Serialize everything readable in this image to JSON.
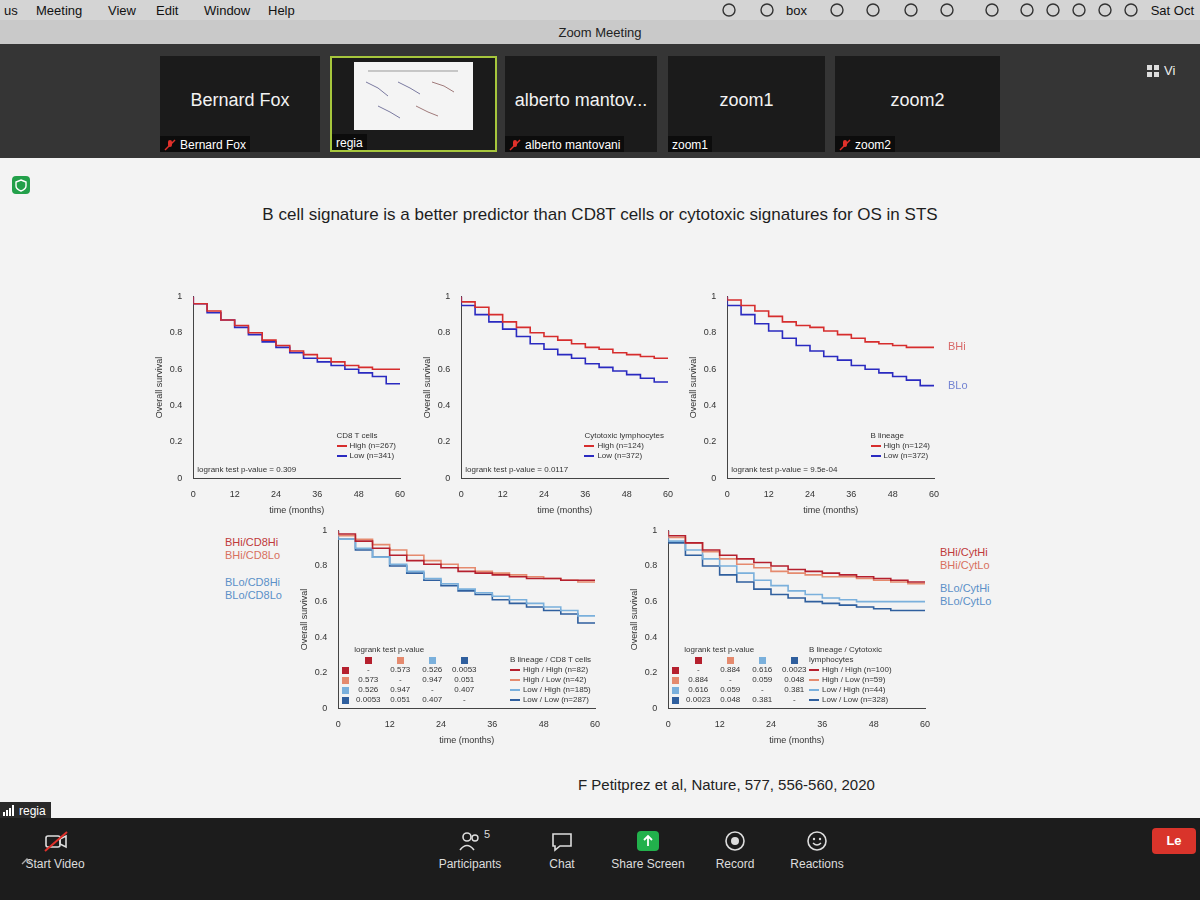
{
  "app_window": {
    "menu_bar": {
      "items": [
        "us",
        "Meeting",
        "View",
        "Edit",
        "Window",
        "Help"
      ],
      "status_items": [
        "box",
        "Sat Oct"
      ]
    },
    "window_title": "Zoom Meeting",
    "view_button": "Vi",
    "tiles": [
      {
        "name": "Bernard Fox",
        "label": "Bernard Fox",
        "muted": true
      },
      {
        "label": "regia",
        "muted": false
      },
      {
        "name": "alberto mantov...",
        "label": "alberto mantovani",
        "muted": true
      },
      {
        "name": "zoom1",
        "label": "zoom1",
        "muted": false
      },
      {
        "name": "zoom2",
        "label": "zoom2",
        "muted": true
      }
    ],
    "self_label": "regia",
    "toolbar": [
      {
        "label": "Start Video"
      },
      {
        "label": "Participants",
        "count": 5
      },
      {
        "label": "Chat"
      },
      {
        "label": "Share Screen"
      },
      {
        "label": "Record"
      },
      {
        "label": "Reactions"
      }
    ],
    "leave_button": "Le"
  },
  "slide": {
    "title": "B cell signature is a better predictor than CD8T cells or cytotoxic signatures for OS in STS",
    "citation": "F Petitprez et al, Nature, 577, 556-560, 2020"
  },
  "chart_data": [
    {
      "type": "line",
      "line_style": "steps",
      "x": [
        0,
        4,
        8,
        12,
        16,
        20,
        24,
        28,
        32,
        36,
        40,
        44,
        48,
        52,
        56,
        60
      ],
      "xlim": [
        0,
        60
      ],
      "xticks": [
        0,
        12,
        24,
        36,
        48,
        60
      ],
      "ylim": [
        0,
        1
      ],
      "yticks": [
        0,
        0.2,
        0.4,
        0.6,
        0.8,
        1
      ],
      "x_label": "time (months)",
      "y_label": "Overall survival",
      "legend": "lower right",
      "legend_title": "CD8 T cells",
      "pvalue": "logrank test p-value = 0.309",
      "series": [
        {
          "name": "High (n=267)",
          "color": "#d62d2d",
          "values": [
            1,
            0.96,
            0.92,
            0.87,
            0.84,
            0.8,
            0.76,
            0.73,
            0.7,
            0.68,
            0.66,
            0.64,
            0.62,
            0.61,
            0.6,
            0.6
          ]
        },
        {
          "name": "Low (n=341)",
          "color": "#2a2ac0",
          "values": [
            1,
            0.96,
            0.91,
            0.87,
            0.83,
            0.79,
            0.75,
            0.72,
            0.69,
            0.66,
            0.64,
            0.62,
            0.6,
            0.58,
            0.56,
            0.52
          ]
        }
      ]
    },
    {
      "type": "line",
      "line_style": "steps",
      "x": [
        0,
        4,
        8,
        12,
        16,
        20,
        24,
        28,
        32,
        36,
        40,
        44,
        48,
        52,
        56,
        60
      ],
      "xlim": [
        0,
        60
      ],
      "xticks": [
        0,
        12,
        24,
        36,
        48,
        60
      ],
      "ylim": [
        0,
        1
      ],
      "yticks": [
        0,
        0.2,
        0.4,
        0.6,
        0.8,
        1
      ],
      "x_label": "time (months)",
      "y_label": "Overall survival",
      "legend": "lower right",
      "legend_title": "Cytotoxic lymphocytes",
      "pvalue": "logrank test p-value = 0.0117",
      "series": [
        {
          "name": "High (n=124)",
          "color": "#d62d2d",
          "values": [
            1,
            0.97,
            0.94,
            0.9,
            0.86,
            0.83,
            0.8,
            0.78,
            0.76,
            0.74,
            0.72,
            0.71,
            0.69,
            0.68,
            0.67,
            0.66
          ]
        },
        {
          "name": "Low (n=372)",
          "color": "#2a2ac0",
          "values": [
            1,
            0.95,
            0.9,
            0.86,
            0.82,
            0.78,
            0.74,
            0.71,
            0.68,
            0.66,
            0.63,
            0.61,
            0.59,
            0.57,
            0.55,
            0.53
          ]
        }
      ]
    },
    {
      "type": "line",
      "line_style": "steps",
      "x": [
        0,
        4,
        8,
        12,
        16,
        20,
        24,
        28,
        32,
        36,
        40,
        44,
        48,
        52,
        56,
        60
      ],
      "xlim": [
        0,
        60
      ],
      "xticks": [
        0,
        12,
        24,
        36,
        48,
        60
      ],
      "ylim": [
        0,
        1
      ],
      "yticks": [
        0,
        0.2,
        0.4,
        0.6,
        0.8,
        1
      ],
      "x_label": "time (months)",
      "y_label": "Overall survival",
      "legend": "lower right",
      "legend_title": "B lineage",
      "pvalue": "logrank test p-value = 9.5e-04",
      "annotations": [
        {
          "text": "BHi",
          "color": "#d86a6a"
        },
        {
          "text": "BLo",
          "color": "#7383d2"
        }
      ],
      "series": [
        {
          "name": "High (n=124)",
          "color": "#d62d2d",
          "values": [
            1,
            0.98,
            0.95,
            0.92,
            0.89,
            0.86,
            0.84,
            0.83,
            0.81,
            0.79,
            0.77,
            0.75,
            0.74,
            0.73,
            0.72,
            0.72
          ]
        },
        {
          "name": "Low (n=372)",
          "color": "#2a2ac0",
          "values": [
            1,
            0.95,
            0.9,
            0.85,
            0.81,
            0.77,
            0.73,
            0.7,
            0.67,
            0.65,
            0.62,
            0.6,
            0.58,
            0.56,
            0.54,
            0.51
          ]
        }
      ]
    },
    {
      "type": "line",
      "line_style": "steps",
      "x": [
        0,
        4,
        8,
        12,
        16,
        20,
        24,
        28,
        32,
        36,
        40,
        44,
        48,
        52,
        56,
        60
      ],
      "xlim": [
        0,
        60
      ],
      "xticks": [
        0,
        12,
        24,
        36,
        48,
        60
      ],
      "ylim": [
        0,
        1
      ],
      "yticks": [
        0,
        0.2,
        0.4,
        0.6,
        0.8,
        1
      ],
      "x_label": "time (months)",
      "y_label": "Overall survival",
      "legend": "lower right",
      "legend_title": "B lineage / CD8 T cells",
      "pvalue_table": {
        "title": "logrank test p-value",
        "rows": [
          [
            "-",
            0.573,
            0.526,
            0.0053
          ],
          [
            0.573,
            "-",
            0.947,
            0.051
          ],
          [
            0.526,
            0.947,
            "-",
            0.407
          ],
          [
            0.0053,
            0.051,
            0.407,
            "-"
          ]
        ]
      },
      "annotations": [
        {
          "text": "BHi/CD8Hi",
          "color": "#c03a3a"
        },
        {
          "text": "BHi/CD8Lo",
          "color": "#d8705e"
        },
        {
          "text": "BLo/CD8Hi",
          "color": "#5b90c8"
        },
        {
          "text": "BLo/CD8Lo",
          "color": "#5b90c8"
        }
      ],
      "series": [
        {
          "name": "High / High (n=82)",
          "color": "#b5202e",
          "values": [
            1,
            0.98,
            0.94,
            0.9,
            0.86,
            0.83,
            0.81,
            0.79,
            0.77,
            0.76,
            0.75,
            0.74,
            0.73,
            0.73,
            0.72,
            0.72
          ]
        },
        {
          "name": "High / Low (n=42)",
          "color": "#e58a6e",
          "values": [
            1,
            0.97,
            0.95,
            0.92,
            0.89,
            0.86,
            0.83,
            0.81,
            0.79,
            0.77,
            0.76,
            0.75,
            0.74,
            0.73,
            0.72,
            0.71
          ]
        },
        {
          "name": "Low / High (n=185)",
          "color": "#7ab0dc",
          "values": [
            1,
            0.95,
            0.9,
            0.85,
            0.81,
            0.77,
            0.73,
            0.7,
            0.67,
            0.65,
            0.63,
            0.61,
            0.59,
            0.57,
            0.55,
            0.52
          ]
        },
        {
          "name": "Low / Low (n=287)",
          "color": "#2f5f9e",
          "values": [
            1,
            0.95,
            0.89,
            0.85,
            0.8,
            0.76,
            0.72,
            0.69,
            0.66,
            0.64,
            0.61,
            0.59,
            0.57,
            0.55,
            0.53,
            0.48
          ]
        }
      ]
    },
    {
      "type": "line",
      "line_style": "steps",
      "x": [
        0,
        4,
        8,
        12,
        16,
        20,
        24,
        28,
        32,
        36,
        40,
        44,
        48,
        52,
        56,
        60
      ],
      "xlim": [
        0,
        60
      ],
      "xticks": [
        0,
        12,
        24,
        36,
        48,
        60
      ],
      "ylim": [
        0,
        1
      ],
      "yticks": [
        0,
        0.2,
        0.4,
        0.6,
        0.8,
        1
      ],
      "x_label": "time (months)",
      "y_label": "Overall survival",
      "legend": "lower right",
      "legend_title": "B lineage / Cytotoxic lymphocytes",
      "pvalue_table": {
        "title": "logrank test p-value",
        "rows": [
          [
            "-",
            0.884,
            0.616,
            0.0023
          ],
          [
            0.884,
            "-",
            0.059,
            0.048
          ],
          [
            0.616,
            0.059,
            "-",
            0.381
          ],
          [
            0.0023,
            0.048,
            0.381,
            "-"
          ]
        ]
      },
      "annotations": [
        {
          "text": "BHi/CytHi",
          "color": "#c03a3a"
        },
        {
          "text": "BHi/CytLo",
          "color": "#d8705e"
        },
        {
          "text": "BLo/CytHi",
          "color": "#5b90c8"
        },
        {
          "text": "BLo/CytLo",
          "color": "#5b90c8"
        }
      ],
      "series": [
        {
          "name": "High / High (n=100)",
          "color": "#b5202e",
          "values": [
            1,
            0.97,
            0.93,
            0.89,
            0.86,
            0.84,
            0.82,
            0.8,
            0.78,
            0.77,
            0.76,
            0.75,
            0.74,
            0.73,
            0.72,
            0.71
          ]
        },
        {
          "name": "High / Low (n=59)",
          "color": "#e58a6e",
          "values": [
            1,
            0.96,
            0.93,
            0.88,
            0.84,
            0.81,
            0.79,
            0.77,
            0.76,
            0.75,
            0.74,
            0.74,
            0.73,
            0.72,
            0.71,
            0.7
          ]
        },
        {
          "name": "Low / High (n=44)",
          "color": "#7ab0dc",
          "values": [
            1,
            0.94,
            0.89,
            0.84,
            0.8,
            0.76,
            0.72,
            0.69,
            0.66,
            0.64,
            0.62,
            0.61,
            0.6,
            0.6,
            0.6,
            0.6
          ]
        },
        {
          "name": "Low / Low (n=328)",
          "color": "#2f5f9e",
          "values": [
            1,
            0.93,
            0.86,
            0.8,
            0.75,
            0.71,
            0.67,
            0.64,
            0.62,
            0.6,
            0.59,
            0.58,
            0.57,
            0.56,
            0.55,
            0.55
          ]
        }
      ]
    }
  ]
}
